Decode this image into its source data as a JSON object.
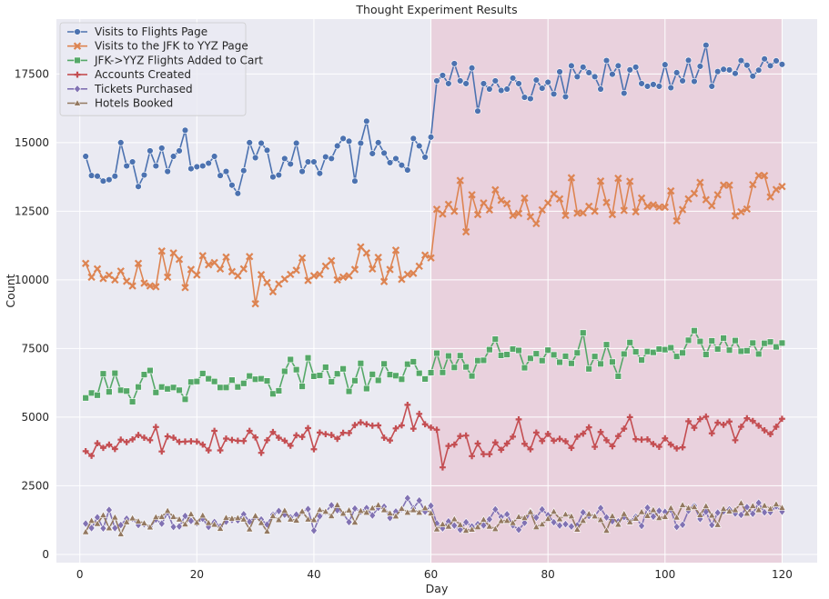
{
  "chart_data": {
    "type": "line",
    "title": "Thought Experiment Results",
    "xlabel": "Day",
    "ylabel": "Count",
    "xlim": [
      -4,
      126
    ],
    "ylim": [
      -300,
      19500
    ],
    "xticks": [
      0,
      20,
      40,
      60,
      80,
      100,
      120
    ],
    "yticks": [
      0,
      2500,
      5000,
      7500,
      10000,
      12500,
      15000,
      17500
    ],
    "grid": true,
    "legend_position": "top-left",
    "highlight_span": {
      "x": [
        60,
        120
      ],
      "color": "#e8b4c4"
    },
    "x": [
      1,
      2,
      3,
      4,
      5,
      6,
      7,
      8,
      9,
      10,
      11,
      12,
      13,
      14,
      15,
      16,
      17,
      18,
      19,
      20,
      21,
      22,
      23,
      24,
      25,
      26,
      27,
      28,
      29,
      30,
      31,
      32,
      33,
      34,
      35,
      36,
      37,
      38,
      39,
      40,
      41,
      42,
      43,
      44,
      45,
      46,
      47,
      48,
      49,
      50,
      51,
      52,
      53,
      54,
      55,
      56,
      57,
      58,
      59,
      60,
      61,
      62,
      63,
      64,
      65,
      66,
      67,
      68,
      69,
      70,
      71,
      72,
      73,
      74,
      75,
      76,
      77,
      78,
      79,
      80,
      81,
      82,
      83,
      84,
      85,
      86,
      87,
      88,
      89,
      90,
      91,
      92,
      93,
      94,
      95,
      96,
      97,
      98,
      99,
      100,
      101,
      102,
      103,
      104,
      105,
      106,
      107,
      108,
      109,
      110,
      111,
      112,
      113,
      114,
      115,
      116,
      117,
      118,
      119,
      120
    ],
    "series": [
      {
        "name": "Visits to Flights Page",
        "color": "#4c72b0",
        "marker": "circle",
        "values": [
          14500,
          13800,
          13780,
          13600,
          13650,
          13780,
          15000,
          14150,
          14300,
          13400,
          13820,
          14700,
          14150,
          14800,
          13950,
          14500,
          14700,
          15450,
          14050,
          14120,
          14150,
          14250,
          14500,
          13800,
          13950,
          13450,
          13150,
          13980,
          15000,
          14450,
          14980,
          14720,
          13750,
          13820,
          14420,
          14220,
          14980,
          13950,
          14300,
          14300,
          13880,
          14480,
          14420,
          14880,
          15150,
          15050,
          13600,
          14980,
          15780,
          14600,
          15000,
          14620,
          14270,
          14420,
          14180,
          14000,
          15150,
          14880,
          14470,
          15200,
          17250,
          17450,
          17150,
          17880,
          17250,
          17150,
          17720,
          16150,
          17150,
          16950,
          17250,
          16900,
          16950,
          17350,
          17150,
          16650,
          16600,
          17280,
          16980,
          17200,
          16770,
          17580,
          16670,
          17800,
          17400,
          17750,
          17550,
          17400,
          16950,
          17990,
          17490,
          17800,
          16800,
          17650,
          17750,
          17150,
          17050,
          17120,
          17050,
          17840,
          17000,
          17550,
          17250,
          18000,
          17230,
          17780,
          18550,
          17050,
          17590,
          17670,
          17650,
          17520,
          17990,
          17820,
          17420,
          17640,
          18050,
          17800,
          17980,
          17850
        ]
      },
      {
        "name": "Visits to the JFK to YYZ Page",
        "color": "#dd8452",
        "marker": "x",
        "values": [
          10600,
          10100,
          10400,
          10050,
          10170,
          10000,
          10320,
          9950,
          9780,
          10600,
          9880,
          9780,
          9750,
          11050,
          10100,
          10980,
          10750,
          9720,
          10380,
          10180,
          10880,
          10550,
          10630,
          10400,
          10830,
          10300,
          10150,
          10400,
          10850,
          9130,
          10190,
          9900,
          9570,
          9850,
          10030,
          10200,
          10350,
          10800,
          9980,
          10150,
          10200,
          10500,
          10700,
          10000,
          10100,
          10150,
          10380,
          11200,
          10980,
          10400,
          10820,
          9940,
          10380,
          11080,
          10020,
          10200,
          10240,
          10500,
          10900,
          10800,
          12570,
          12400,
          12750,
          12500,
          13620,
          11750,
          13100,
          12380,
          12800,
          12550,
          13280,
          12900,
          12780,
          12350,
          12420,
          12980,
          12300,
          12050,
          12550,
          12800,
          13130,
          12950,
          12350,
          13720,
          12430,
          12440,
          12680,
          12500,
          13600,
          12820,
          12380,
          13700,
          12530,
          13590,
          12480,
          12980,
          12680,
          12730,
          12650,
          12650,
          13240,
          12150,
          12560,
          12950,
          13150,
          13550,
          12920,
          12700,
          13100,
          13450,
          13450,
          12330,
          12480,
          12580,
          13470,
          13800,
          13800,
          13020,
          13290,
          13400
        ]
      },
      {
        "name": "JFK->YYZ Flights Added to Cart",
        "color": "#55a868",
        "marker": "square",
        "values": [
          5700,
          5880,
          5800,
          6580,
          5920,
          6600,
          5980,
          5950,
          5560,
          6100,
          6550,
          6700,
          5900,
          6100,
          6030,
          6080,
          5980,
          5650,
          6280,
          6300,
          6590,
          6400,
          6300,
          6080,
          6080,
          6350,
          6100,
          6230,
          6500,
          6380,
          6400,
          6320,
          5850,
          5960,
          6670,
          7100,
          6730,
          6120,
          7160,
          6490,
          6520,
          6820,
          6290,
          6580,
          6760,
          5940,
          6330,
          6960,
          6040,
          6560,
          6340,
          6940,
          6550,
          6510,
          6380,
          6930,
          7020,
          6600,
          6390,
          6620,
          7330,
          6630,
          7230,
          6810,
          7240,
          6830,
          6500,
          7060,
          7070,
          7460,
          7840,
          7250,
          7280,
          7480,
          7430,
          6800,
          7140,
          7310,
          7060,
          7440,
          7270,
          7000,
          7220,
          6960,
          7340,
          8070,
          6760,
          7210,
          6940,
          7640,
          7010,
          6490,
          7300,
          7720,
          7380,
          7080,
          7390,
          7360,
          7480,
          7460,
          7530,
          7210,
          7340,
          7800,
          8150,
          7760,
          7280,
          7780,
          7480,
          7880,
          7440,
          7790,
          7400,
          7420,
          7700,
          7300,
          7690,
          7740,
          7560,
          7700
        ]
      },
      {
        "name": "Accounts Created",
        "color": "#c44e52",
        "marker": "plus",
        "values": [
          3760,
          3590,
          4050,
          3880,
          4000,
          3840,
          4180,
          4090,
          4190,
          4350,
          4250,
          4160,
          4640,
          3750,
          4300,
          4250,
          4100,
          4110,
          4120,
          4110,
          4000,
          3790,
          4500,
          3790,
          4220,
          4170,
          4140,
          4130,
          4500,
          4260,
          3700,
          4160,
          4460,
          4250,
          4140,
          3960,
          4340,
          4280,
          4600,
          3830,
          4440,
          4380,
          4350,
          4210,
          4430,
          4420,
          4710,
          4810,
          4740,
          4690,
          4700,
          4250,
          4150,
          4590,
          4700,
          5450,
          4580,
          5120,
          4740,
          4620,
          4540,
          3170,
          3950,
          4000,
          4310,
          4330,
          3580,
          4040,
          3650,
          3650,
          4080,
          3810,
          4040,
          4290,
          4920,
          4030,
          3830,
          4440,
          4130,
          4390,
          4140,
          4210,
          4120,
          3880,
          4290,
          4400,
          4630,
          3920,
          4460,
          4160,
          3940,
          4310,
          4580,
          5000,
          4200,
          4180,
          4190,
          4020,
          3920,
          4230,
          4000,
          3860,
          3900,
          4850,
          4610,
          4930,
          5020,
          4410,
          4800,
          4720,
          4840,
          4160,
          4650,
          4960,
          4860,
          4690,
          4520,
          4380,
          4650,
          4940
        ]
      },
      {
        "name": "Tickets Purchased",
        "color": "#8172b3",
        "marker": "diamond",
        "values": [
          1120,
          960,
          1350,
          950,
          1620,
          960,
          1070,
          1300,
          1300,
          1070,
          1100,
          1000,
          1270,
          1120,
          1520,
          1000,
          1020,
          1400,
          1220,
          1140,
          1300,
          1000,
          1180,
          1020,
          1190,
          1250,
          1240,
          1460,
          1190,
          1380,
          1270,
          1090,
          1450,
          1580,
          1450,
          1350,
          1450,
          1550,
          1650,
          870,
          1390,
          1550,
          1790,
          1610,
          1490,
          1180,
          1670,
          1560,
          1690,
          1420,
          1700,
          1740,
          1330,
          1560,
          1650,
          2050,
          1680,
          1960,
          1560,
          1770,
          1130,
          950,
          1200,
          1050,
          900,
          1170,
          1020,
          1100,
          1060,
          1280,
          1640,
          1360,
          1460,
          1060,
          900,
          1150,
          1550,
          1340,
          1640,
          1430,
          1170,
          1050,
          1100,
          1020,
          1060,
          1530,
          1400,
          1390,
          1690,
          1350,
          1210,
          1200,
          1360,
          1210,
          1370,
          1040,
          1700,
          1380,
          1590,
          1550,
          1620,
          1000,
          1080,
          1590,
          1770,
          1290,
          1550,
          1070,
          1520,
          1570,
          1640,
          1490,
          1440,
          1720,
          1480,
          1880,
          1530,
          1540,
          1750,
          1560
        ]
      },
      {
        "name": "Hotels Booked",
        "color": "#937860",
        "marker": "triangle",
        "values": [
          820,
          1230,
          1120,
          1430,
          960,
          1350,
          740,
          1180,
          1320,
          1210,
          1140,
          990,
          1360,
          1370,
          1590,
          1370,
          1280,
          1100,
          1470,
          1160,
          1420,
          1150,
          1090,
          940,
          1340,
          1310,
          1330,
          1280,
          920,
          1410,
          1150,
          840,
          1400,
          1260,
          1600,
          1280,
          1240,
          1570,
          1280,
          1260,
          1630,
          1560,
          1400,
          1800,
          1490,
          1610,
          1170,
          1590,
          1530,
          1690,
          1800,
          1620,
          1500,
          1390,
          1670,
          1530,
          1620,
          1530,
          1690,
          1500,
          920,
          1100,
          1020,
          1290,
          1080,
          870,
          910,
          1000,
          1270,
          1020,
          930,
          1220,
          1230,
          1150,
          1370,
          1330,
          1550,
          1000,
          1100,
          1300,
          1560,
          1290,
          1460,
          1390,
          910,
          1230,
          1480,
          1390,
          1260,
          870,
          1400,
          1090,
          1480,
          1180,
          1310,
          1550,
          1410,
          1620,
          1330,
          1370,
          1690,
          1350,
          1800,
          1690,
          1730,
          1440,
          1760,
          1420,
          1080,
          1660,
          1570,
          1620,
          1870,
          1490,
          1770,
          1620,
          1780,
          1660,
          1830,
          1700
        ]
      }
    ]
  }
}
